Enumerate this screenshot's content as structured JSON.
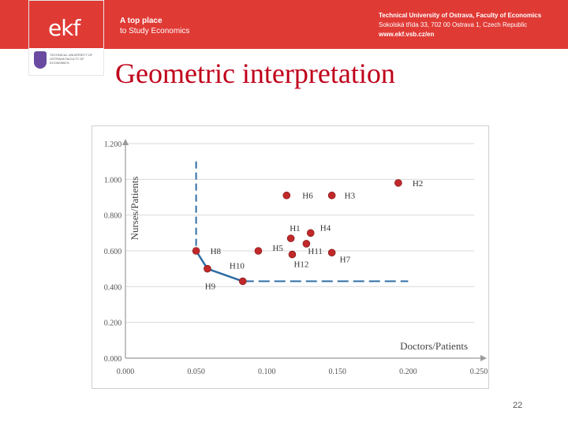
{
  "header": {
    "logo_text": "ekf",
    "tagline_line1": "A top place",
    "tagline_line2": "to Study Economics",
    "university_small": "TECHNICAL UNIVERSITY OF OSTRAVA FACULTY OF ECONOMICS",
    "contact_line1": "Technical University of Ostrava, Faculty of Economics",
    "contact_line2": "Sokolská třída 33, 702 00 Ostrava 1, Czech Republic",
    "contact_line3": "www.ekf.vsb.cz/en",
    "accent_color": "#e03a35"
  },
  "slide": {
    "title": "Geometric interpretation",
    "page_number": "22",
    "title_color": "#c0001a"
  },
  "chart_data": {
    "type": "scatter",
    "xlabel": "Doctors/Patients",
    "ylabel": "Nurses/Patients",
    "xlim": [
      0,
      0.25
    ],
    "ylim": [
      0,
      1.2
    ],
    "xticks": [
      "0.000",
      "0.050",
      "0.100",
      "0.150",
      "0.200",
      "0.250"
    ],
    "yticks": [
      "0.000",
      "0.200",
      "0.400",
      "0.600",
      "0.800",
      "1.000",
      "1.200"
    ],
    "point_color": "#c0282a",
    "frontier_color": "#2e6da4",
    "points": [
      {
        "label": "H2",
        "x": 0.193,
        "y": 0.98
      },
      {
        "label": "H3",
        "x": 0.146,
        "y": 0.91
      },
      {
        "label": "H6",
        "x": 0.114,
        "y": 0.91
      },
      {
        "label": "H4",
        "x": 0.131,
        "y": 0.7
      },
      {
        "label": "H1",
        "x": 0.117,
        "y": 0.67
      },
      {
        "label": "H11",
        "x": 0.128,
        "y": 0.64
      },
      {
        "label": "H5",
        "x": 0.094,
        "y": 0.6
      },
      {
        "label": "H7",
        "x": 0.146,
        "y": 0.59
      },
      {
        "label": "H12",
        "x": 0.118,
        "y": 0.58
      },
      {
        "label": "H8",
        "x": 0.05,
        "y": 0.6
      },
      {
        "label": "H10",
        "x": 0.058,
        "y": 0.5
      },
      {
        "label": "H9",
        "x": 0.083,
        "y": 0.43
      }
    ],
    "frontier": [
      {
        "x": 0.05,
        "y": 0.6
      },
      {
        "x": 0.058,
        "y": 0.5
      },
      {
        "x": 0.083,
        "y": 0.43
      }
    ],
    "frontier_extension_vertical": [
      {
        "x": 0.05,
        "y": 1.1
      },
      {
        "x": 0.05,
        "y": 0.6
      }
    ],
    "frontier_extension_horizontal": [
      {
        "x": 0.083,
        "y": 0.43
      },
      {
        "x": 0.2,
        "y": 0.43
      }
    ]
  }
}
